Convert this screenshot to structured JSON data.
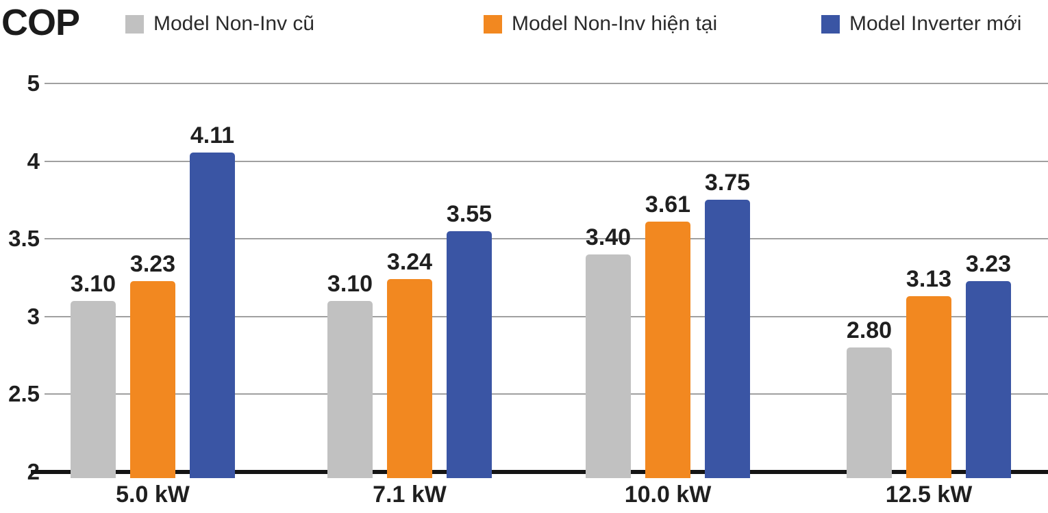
{
  "title": "COP",
  "legend": {
    "items": [
      {
        "label": "Model Non-Inv cũ",
        "color": "#c1c1c1"
      },
      {
        "label": "Model Non-Inv hiện tại",
        "color": "#f28820"
      },
      {
        "label": "Model Inverter mới",
        "color": "#3a55a4"
      }
    ]
  },
  "chart_data": {
    "type": "bar",
    "title": "COP",
    "categories": [
      "5.0 kW",
      "7.1 kW",
      "10.0 kW",
      "12.5 kW"
    ],
    "series": [
      {
        "name": "Model Non-Inv cũ",
        "color": "#c1c1c1",
        "values": [
          3.1,
          3.1,
          3.4,
          2.8
        ]
      },
      {
        "name": "Model Non-Inv hiện tại",
        "color": "#f28820",
        "values": [
          3.23,
          3.24,
          3.61,
          3.13
        ]
      },
      {
        "name": "Model Inverter mới",
        "color": "#3a55a4",
        "values": [
          4.11,
          3.55,
          3.75,
          3.23
        ]
      }
    ],
    "value_labels_shown": true,
    "ylabel": "COP",
    "y_ticks": [
      2,
      2.5,
      3,
      3.5,
      4,
      5
    ],
    "ylim": [
      2,
      5
    ],
    "y_axis_note": "tick labels equally spaced, including the 4-to-5 step",
    "grid": true,
    "legend_position": "top",
    "colors": {
      "grid": "#a0a0a0",
      "axis": "#141414",
      "text": "#1f1f1f"
    }
  }
}
